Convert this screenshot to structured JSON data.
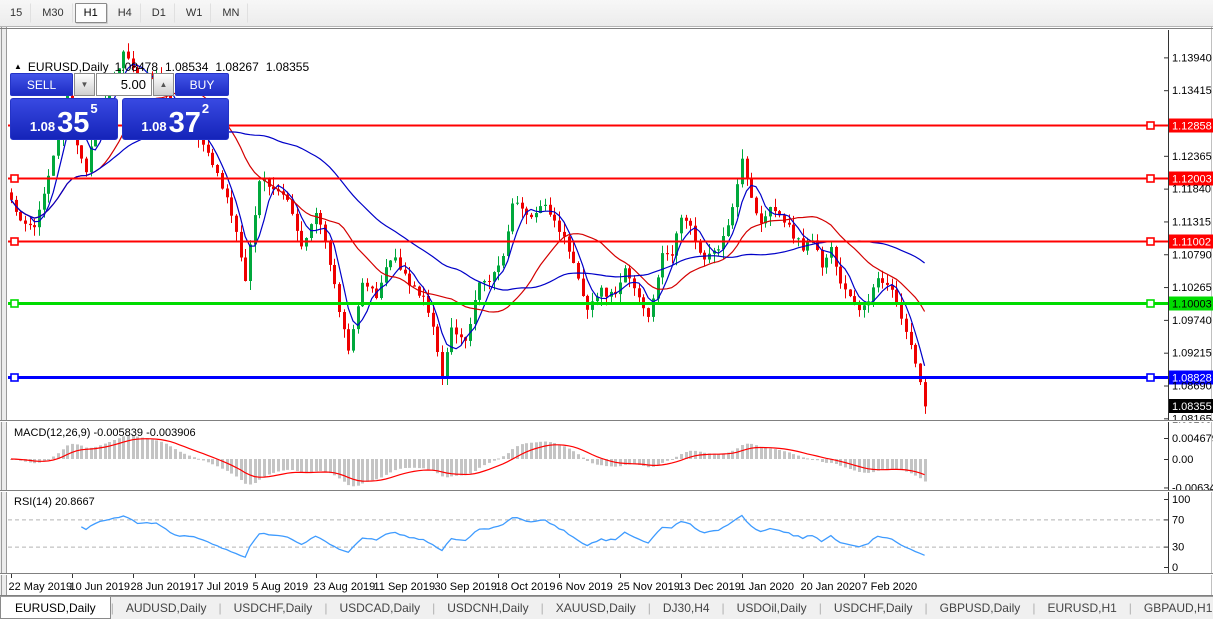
{
  "toolbar": {
    "timeframes": [
      "15",
      "M30",
      "H1",
      "H4",
      "D1",
      "W1",
      "MN"
    ],
    "active": "H1"
  },
  "chart_header": {
    "collapse_icon": "▲",
    "symbol": "EURUSD,Daily",
    "open": "1.08478",
    "high": "1.08534",
    "low": "1.08267",
    "close": "1.08355"
  },
  "trade_panel": {
    "sell_label": "SELL",
    "buy_label": "BUY",
    "lot_value": "5.00",
    "spin_down_icon": "▼",
    "spin_up_icon": "▲",
    "sell_price_small": "1.08",
    "sell_price_big": "35",
    "sell_price_sup": "5",
    "buy_price_small": "1.08",
    "buy_price_big": "37",
    "buy_price_sup": "2",
    "panel_blue": "#2435CE"
  },
  "chart_data": {
    "type": "candlestick",
    "symbol": "EURUSD",
    "timeframe": "Daily",
    "bars": 196,
    "candle_up_color": "#00A83C",
    "candle_down_color": "#EE0000",
    "close_anchors": [
      [
        0,
        1.1165
      ],
      [
        2,
        1.1128
      ],
      [
        5,
        1.112
      ],
      [
        9,
        1.124
      ],
      [
        12,
        1.133
      ],
      [
        14,
        1.1255
      ],
      [
        16,
        1.1215
      ],
      [
        19,
        1.131
      ],
      [
        24,
        1.14
      ],
      [
        27,
        1.136
      ],
      [
        31,
        1.1368
      ],
      [
        35,
        1.129
      ],
      [
        39,
        1.1275
      ],
      [
        43,
        1.1225
      ],
      [
        47,
        1.1145
      ],
      [
        50,
        1.1042
      ],
      [
        53,
        1.12
      ],
      [
        56,
        1.1185
      ],
      [
        59,
        1.1165
      ],
      [
        62,
        1.109
      ],
      [
        65,
        1.115
      ],
      [
        68,
        1.1065
      ],
      [
        70,
        1.099
      ],
      [
        72,
        1.093
      ],
      [
        75,
        1.1035
      ],
      [
        78,
        1.101
      ],
      [
        80,
        1.106
      ],
      [
        82,
        1.1075
      ],
      [
        85,
        1.103
      ],
      [
        88,
        1.101
      ],
      [
        90,
        1.096
      ],
      [
        92,
        1.0882
      ],
      [
        94,
        1.0965
      ],
      [
        97,
        1.094
      ],
      [
        100,
        1.103
      ],
      [
        103,
        1.1045
      ],
      [
        105,
        1.1075
      ],
      [
        107,
        1.1165
      ],
      [
        109,
        1.115
      ],
      [
        111,
        1.1135
      ],
      [
        114,
        1.116
      ],
      [
        117,
        1.112
      ],
      [
        119,
        1.1085
      ],
      [
        121,
        1.104
      ],
      [
        123,
        1.0995
      ],
      [
        126,
        1.102
      ],
      [
        129,
        1.101
      ],
      [
        131,
        1.1055
      ],
      [
        134,
        1.101
      ],
      [
        136,
        1.0982
      ],
      [
        139,
        1.1075
      ],
      [
        141,
        1.108
      ],
      [
        143,
        1.114
      ],
      [
        145,
        1.112
      ],
      [
        148,
        1.107
      ],
      [
        151,
        1.109
      ],
      [
        153,
        1.112
      ],
      [
        156,
        1.1235
      ],
      [
        158,
        1.117
      ],
      [
        160,
        1.1125
      ],
      [
        162,
        1.116
      ],
      [
        165,
        1.1135
      ],
      [
        167,
        1.111
      ],
      [
        169,
        1.109
      ],
      [
        171,
        1.1105
      ],
      [
        173,
        1.106
      ],
      [
        175,
        1.109
      ],
      [
        177,
        1.103
      ],
      [
        179,
        1.101
      ],
      [
        181,
        1.0992
      ],
      [
        183,
        1.1
      ],
      [
        185,
        1.1042
      ],
      [
        187,
        1.1035
      ],
      [
        189,
        1.1
      ],
      [
        191,
        1.095
      ],
      [
        192,
        1.093
      ],
      [
        193,
        1.09
      ],
      [
        194,
        1.087
      ],
      [
        195,
        1.0836
      ]
    ],
    "moving_averages": [
      {
        "period": 5,
        "color": "#0000C8"
      },
      {
        "period": 20,
        "color": "#D40000"
      },
      {
        "period": 45,
        "color": "#0000C8"
      }
    ],
    "hlines": [
      {
        "label": "1.12858",
        "price": 1.12858,
        "color": "#FF0000",
        "width": 2,
        "label_fg": "#FFFFFF"
      },
      {
        "label": "1.12003",
        "price": 1.12003,
        "color": "#FF0000",
        "width": 2,
        "label_fg": "#FFFFFF"
      },
      {
        "label": "1.11002",
        "price": 1.11002,
        "color": "#FF0000",
        "width": 2,
        "label_fg": "#FFFFFF"
      },
      {
        "label": "1.10003",
        "price": 1.10003,
        "color": "#00DC00",
        "width": 3,
        "label_fg": "#000000"
      },
      {
        "label": "1.08828",
        "price": 1.08828,
        "color": "#0000FF",
        "width": 3,
        "label_fg": "#FFFFFF"
      }
    ],
    "current_price": {
      "label": "1.08355",
      "price": 1.08355,
      "bg": "#000000",
      "fg": "#FFFFFF"
    },
    "y_axis": {
      "tick_labels": [
        "1.13940",
        "1.13415",
        "1.12365",
        "1.11840",
        "1.11315",
        "1.10790",
        "1.10265",
        "1.09740",
        "1.09215",
        "1.08690",
        "1.08165"
      ]
    },
    "x_axis": {
      "tick_labels": [
        "22 May 2019",
        "10 Jun 2019",
        "28 Jun 2019",
        "17 Jul 2019",
        "5 Aug 2019",
        "23 Aug 2019",
        "11 Sep 2019",
        "30 Sep 2019",
        "18 Oct 2019",
        "6 Nov 2019",
        "25 Nov 2019",
        "13 Dec 2019",
        "1 Jan 2020",
        "20 Jan 2020",
        "7 Feb 2020"
      ],
      "bars_per_tick": 13
    },
    "indicators": [
      {
        "name": "MACD",
        "label": "MACD(12,26,9) -0.005839 -0.003906",
        "params": [
          12,
          26,
          9
        ],
        "current_values": [
          "-0.005839",
          "-0.003906"
        ],
        "axis": [
          {
            "label": "0.004679",
            "value": 0.004679
          },
          {
            "label": "0.00",
            "value": 0
          },
          {
            "label": "-0.00634",
            "value": -0.00634
          }
        ],
        "hist_color": "#C4C4C4",
        "signal_color": "#FF0000"
      },
      {
        "name": "RSI",
        "label": "RSI(14) 20.8667",
        "period": 14,
        "current_value": "20.8667",
        "axis": [
          {
            "label": "100",
            "value": 100
          },
          {
            "label": "70",
            "value": 70
          },
          {
            "label": "30",
            "value": 30
          },
          {
            "label": "0",
            "value": 0
          }
        ],
        "levels": [
          70,
          30
        ],
        "line_color": "#3E9BFF"
      }
    ]
  },
  "tabs": {
    "items": [
      "EURUSD,Daily",
      "AUDUSD,Daily",
      "USDCHF,Daily",
      "USDCAD,Daily",
      "USDCNH,Daily",
      "XAUUSD,Daily",
      "DJ30,H4",
      "USDOil,Daily",
      "USDCHF,Daily",
      "GBPUSD,Daily",
      "EURUSD,H1",
      "GBPAUD,H1"
    ],
    "active_index": 0,
    "scroll_left_icon": "◂",
    "scroll_right_icon": "▸"
  }
}
